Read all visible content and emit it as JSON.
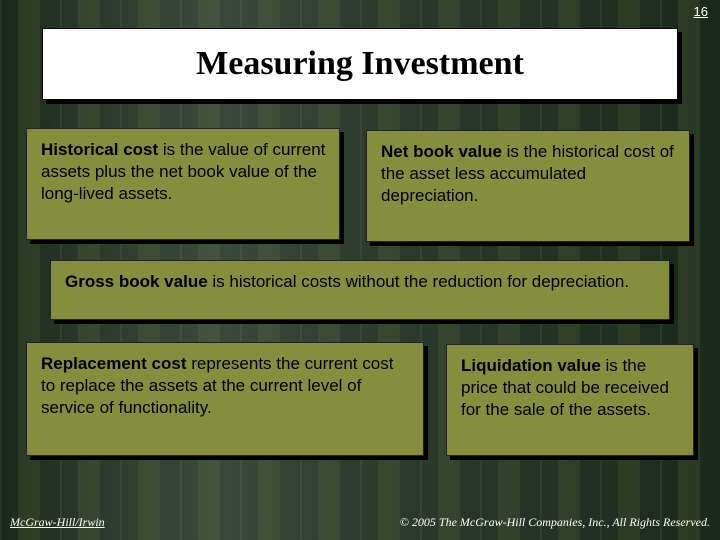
{
  "page_number": "16",
  "title": "Measuring Investment",
  "boxes": {
    "historical": {
      "term": "Historical cost",
      "rest": " is the value of current assets plus the net book value of the long-lived assets."
    },
    "netbook": {
      "term": "Net book value",
      "rest": " is the historical cost of the asset less accumulated depreciation."
    },
    "gross": {
      "term": "Gross book value",
      "rest": " is historical costs without the reduction for depreciation."
    },
    "replacement": {
      "term": "Replacement cost",
      "rest": " represents the current cost to replace the assets at the current level of service of functionality."
    },
    "liquidation": {
      "term": "Liquidation value",
      "rest": " is the price that could be received for the sale of the assets."
    }
  },
  "footer": {
    "left": "McGraw-Hill/Irwin",
    "right": "© 2005 The McGraw-Hill Companies, Inc., All Rights Reserved."
  },
  "colors": {
    "box_fill": "#848e3c",
    "shadow": "#000000",
    "title_bg": "#ffffff"
  }
}
